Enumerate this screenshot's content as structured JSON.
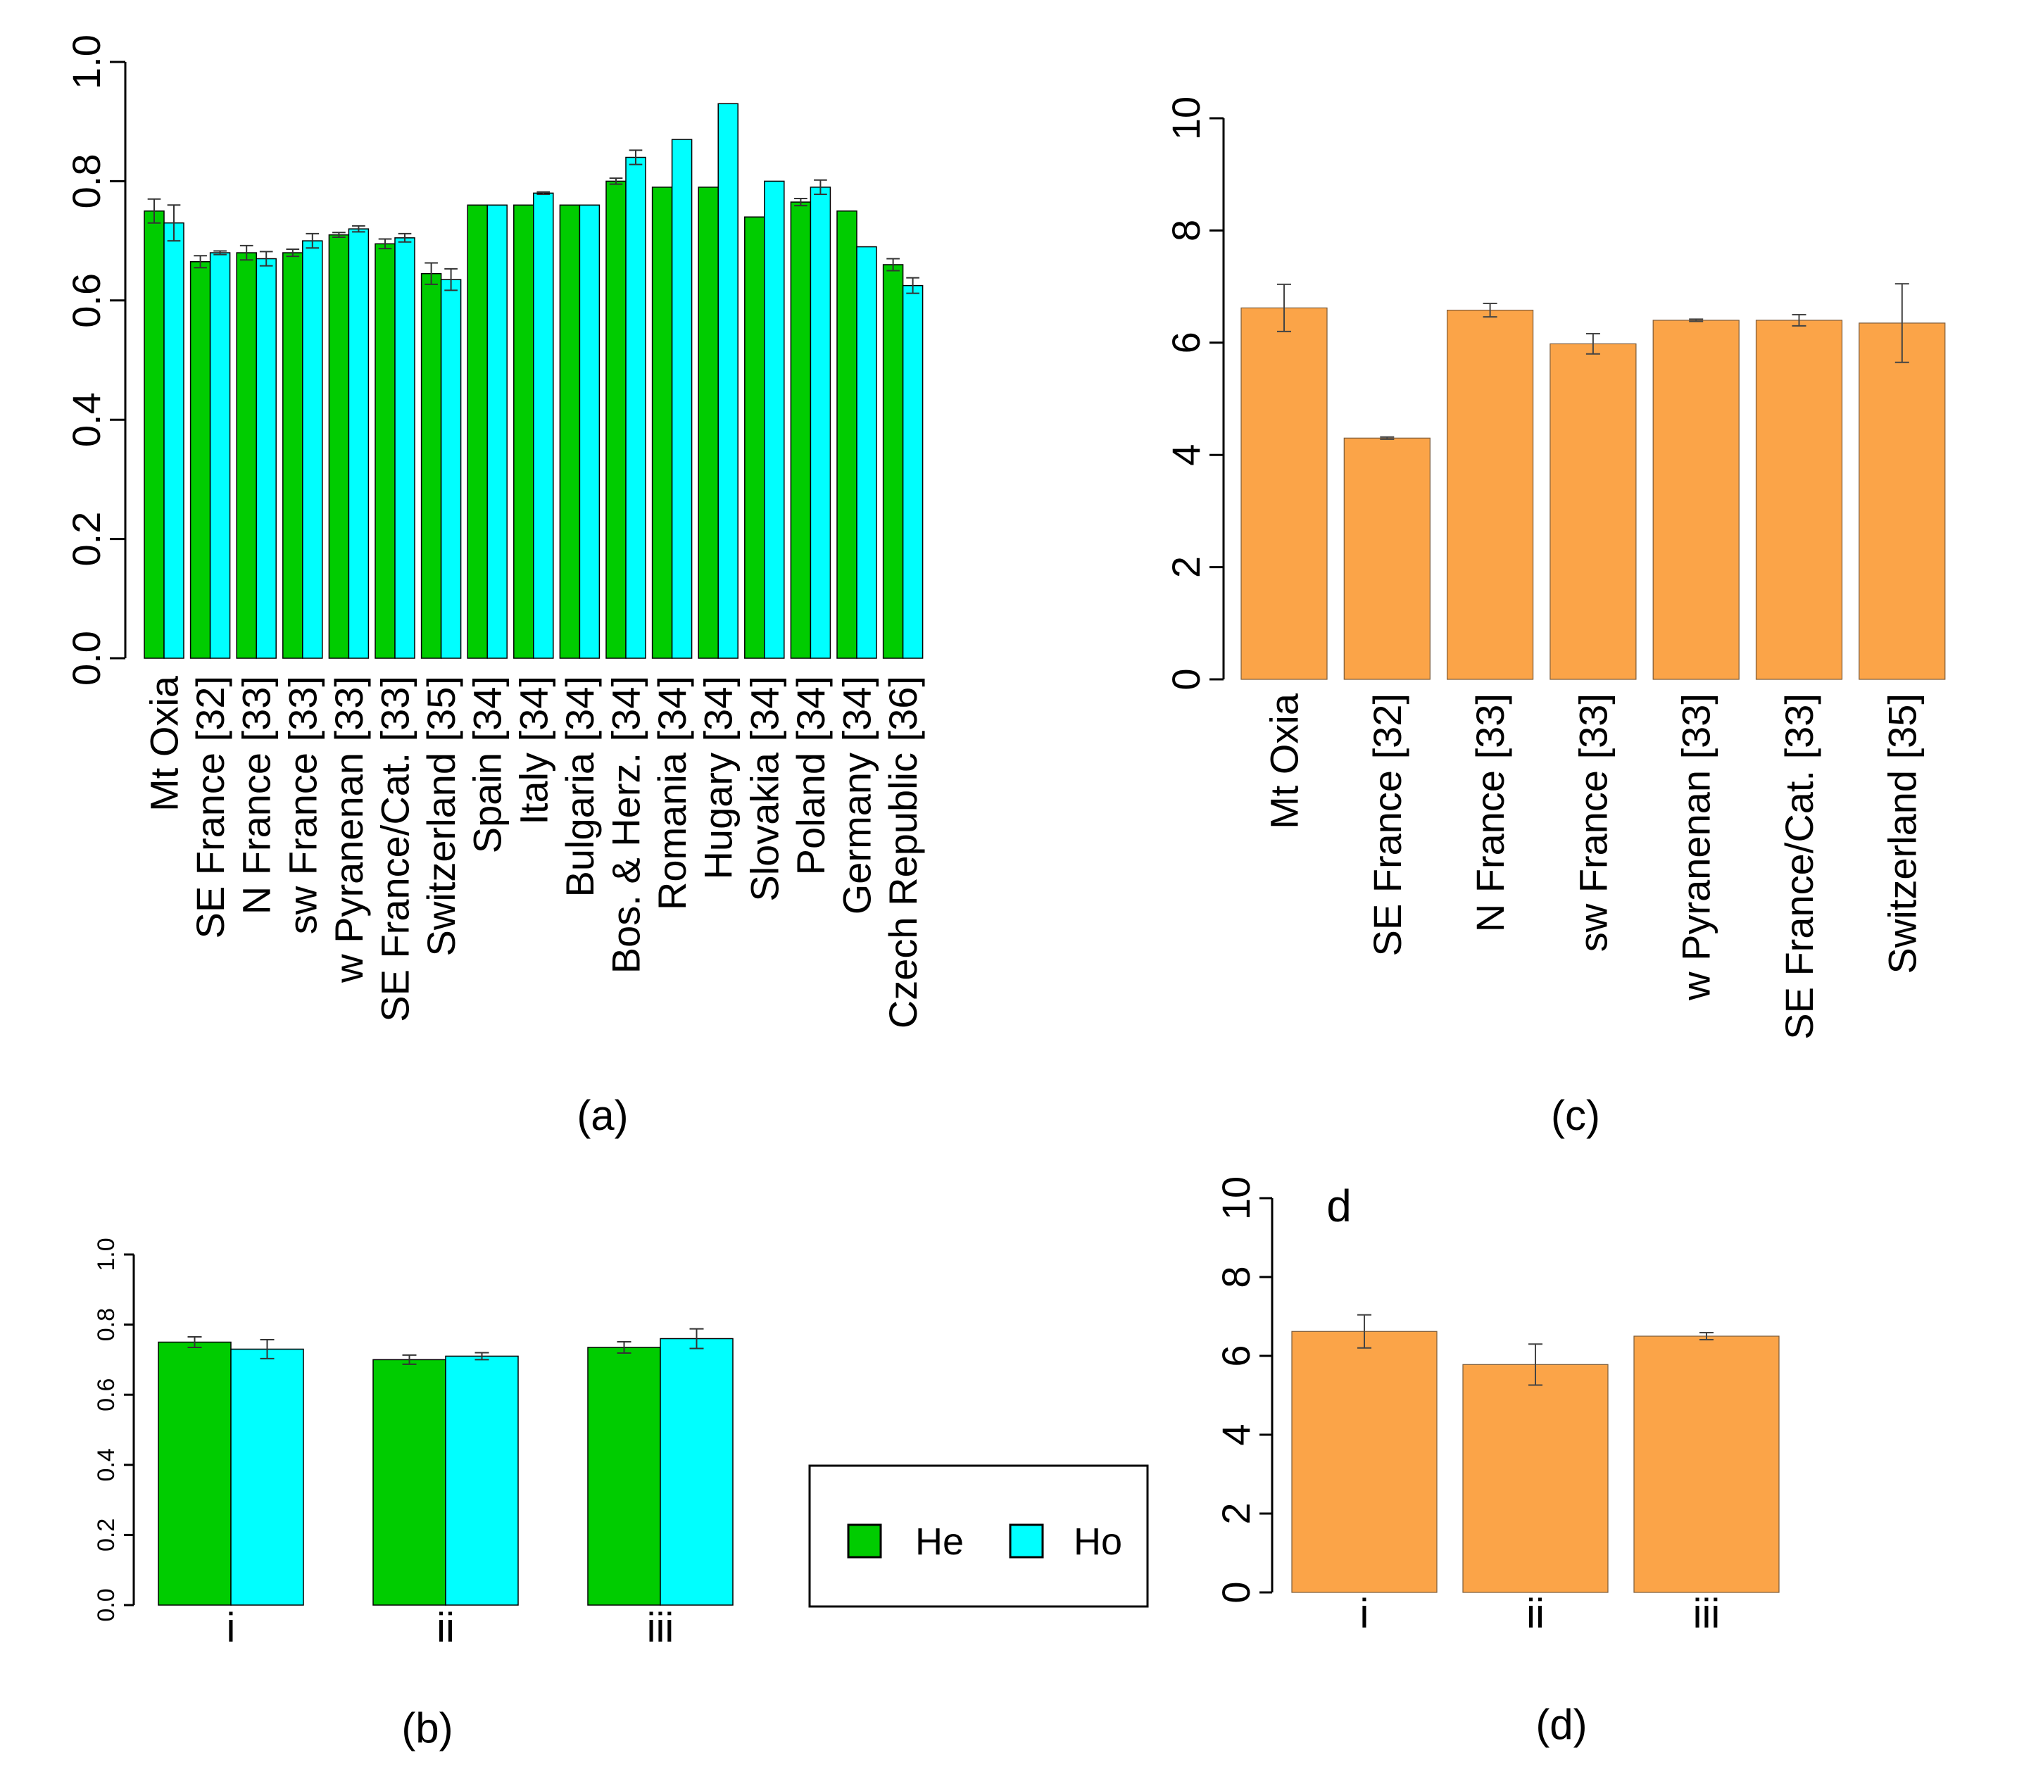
{
  "colors": {
    "he": "#00cc00",
    "ho": "#00ffff",
    "orange": "#fba448"
  },
  "legend": {
    "he_label": "He",
    "ho_label": "Ho"
  },
  "panel_tag_d": "d",
  "chart_data": [
    {
      "id": "a",
      "type": "bar",
      "caption": "(a)",
      "categories": [
        "Mt Oxia",
        "SE France [32]",
        "N France [33]",
        "sw France [33]",
        "w Pyranenan [33]",
        "SE France/Cat. [33]",
        "Switzerland [35]",
        "Spain [34]",
        "Italy [34]",
        "Bulgaria [34]",
        "Bos. & Herz. [34]",
        "Romania [34]",
        "Hugary [34]",
        "Slovakia [34]",
        "Poland [34]",
        "Germany [34]",
        "Czech Republic [36]"
      ],
      "series": [
        {
          "name": "He",
          "color": "#00cc00",
          "values": [
            0.75,
            0.665,
            0.68,
            0.68,
            0.71,
            0.695,
            0.645,
            0.76,
            0.76,
            0.76,
            0.8,
            0.79,
            0.79,
            0.74,
            0.765,
            0.75,
            0.66
          ],
          "errors": [
            0.02,
            0.01,
            0.012,
            0.006,
            0.004,
            0.008,
            0.018,
            0,
            0,
            0,
            0.005,
            0,
            0,
            0,
            0.006,
            0,
            0.01
          ]
        },
        {
          "name": "Ho",
          "color": "#00ffff",
          "values": [
            0.73,
            0.68,
            0.67,
            0.7,
            0.72,
            0.705,
            0.635,
            0.76,
            0.78,
            0.76,
            0.84,
            0.87,
            0.93,
            0.8,
            0.79,
            0.69,
            0.625
          ],
          "errors": [
            0.03,
            0.003,
            0.012,
            0.012,
            0.005,
            0.007,
            0.018,
            0,
            0.002,
            0,
            0.012,
            0,
            0,
            0,
            0.012,
            0,
            0.013
          ]
        }
      ],
      "yticks": [
        "0.0",
        "0.2",
        "0.4",
        "0.6",
        "0.8",
        "1.0"
      ],
      "ylim": [
        0,
        1.0
      ]
    },
    {
      "id": "b",
      "type": "bar",
      "caption": "(b)",
      "categories": [
        "i",
        "ii",
        "iii"
      ],
      "series": [
        {
          "name": "He",
          "color": "#00cc00",
          "values": [
            0.75,
            0.7,
            0.735
          ],
          "errors": [
            0.015,
            0.013,
            0.016
          ]
        },
        {
          "name": "Ho",
          "color": "#00ffff",
          "values": [
            0.73,
            0.71,
            0.76
          ],
          "errors": [
            0.027,
            0.01,
            0.028
          ]
        }
      ],
      "yticks": [
        "0.0",
        "0.2",
        "0.4",
        "0.6",
        "0.8",
        "1.0"
      ],
      "ylim": [
        0,
        1.0
      ]
    },
    {
      "id": "c",
      "type": "bar",
      "caption": "(c)",
      "categories": [
        "Mt Oxia",
        "SE France [32]",
        "N France [33]",
        "sw France [33]",
        "w Pyranenan [33]",
        "SE France/Cat. [33]",
        "Switzerland [35]"
      ],
      "series": [
        {
          "name": "value",
          "color": "#fba448",
          "values": [
            6.62,
            4.3,
            6.58,
            5.98,
            6.4,
            6.4,
            6.35
          ],
          "errors": [
            0.42,
            0.02,
            0.12,
            0.18,
            0.02,
            0.1,
            0.7
          ]
        }
      ],
      "yticks": [
        "0",
        "2",
        "4",
        "6",
        "8",
        "10"
      ],
      "ylim": [
        0,
        10
      ]
    },
    {
      "id": "d",
      "type": "bar",
      "caption": "(d)",
      "categories": [
        "i",
        "ii",
        "iii"
      ],
      "series": [
        {
          "name": "value",
          "color": "#fba448",
          "values": [
            6.62,
            5.78,
            6.5
          ],
          "errors": [
            0.42,
            0.52,
            0.09
          ]
        }
      ],
      "yticks": [
        "0",
        "2",
        "4",
        "6",
        "8",
        "10"
      ],
      "ylim": [
        0,
        10
      ]
    }
  ]
}
